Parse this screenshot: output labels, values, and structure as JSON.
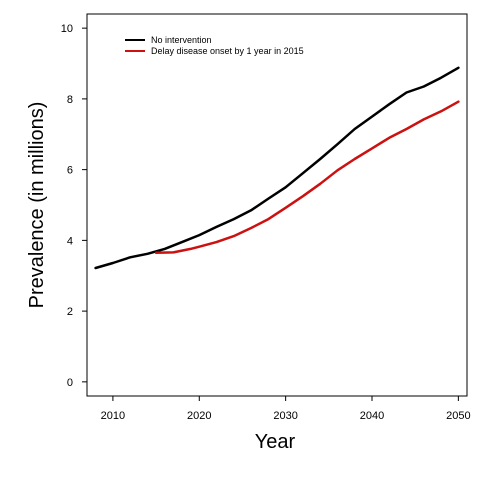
{
  "chart_data": {
    "type": "line",
    "title": "",
    "xlabel": "Year",
    "ylabel": "Prevalence (in millions)",
    "xlim": [
      2007,
      2051
    ],
    "ylim": [
      -0.4,
      10.4
    ],
    "x_ticks": [
      2010,
      2020,
      2030,
      2040,
      2050
    ],
    "y_ticks": [
      0,
      2,
      4,
      6,
      8,
      10
    ],
    "grid": false,
    "legend_position": "top-left",
    "series": [
      {
        "name": "No intervention",
        "color": "#000000",
        "points": [
          [
            2008,
            3.22
          ],
          [
            2010,
            3.36
          ],
          [
            2012,
            3.52
          ],
          [
            2014,
            3.62
          ],
          [
            2016,
            3.76
          ],
          [
            2018,
            3.95
          ],
          [
            2020,
            4.15
          ],
          [
            2022,
            4.38
          ],
          [
            2024,
            4.6
          ],
          [
            2026,
            4.85
          ],
          [
            2028,
            5.18
          ],
          [
            2030,
            5.5
          ],
          [
            2032,
            5.9
          ],
          [
            2034,
            6.3
          ],
          [
            2036,
            6.72
          ],
          [
            2038,
            7.15
          ],
          [
            2040,
            7.5
          ],
          [
            2042,
            7.85
          ],
          [
            2044,
            8.18
          ],
          [
            2046,
            8.35
          ],
          [
            2048,
            8.6
          ],
          [
            2050,
            8.88
          ]
        ]
      },
      {
        "name": "Delay disease onset by 1 year in 2015",
        "color": "#cc1111",
        "points": [
          [
            2015,
            3.65
          ],
          [
            2017,
            3.66
          ],
          [
            2019,
            3.76
          ],
          [
            2020,
            3.82
          ],
          [
            2022,
            3.95
          ],
          [
            2024,
            4.12
          ],
          [
            2026,
            4.35
          ],
          [
            2028,
            4.6
          ],
          [
            2030,
            4.92
          ],
          [
            2032,
            5.25
          ],
          [
            2034,
            5.6
          ],
          [
            2036,
            5.98
          ],
          [
            2038,
            6.3
          ],
          [
            2040,
            6.6
          ],
          [
            2042,
            6.9
          ],
          [
            2044,
            7.15
          ],
          [
            2046,
            7.42
          ],
          [
            2048,
            7.65
          ],
          [
            2050,
            7.92
          ]
        ]
      }
    ]
  }
}
